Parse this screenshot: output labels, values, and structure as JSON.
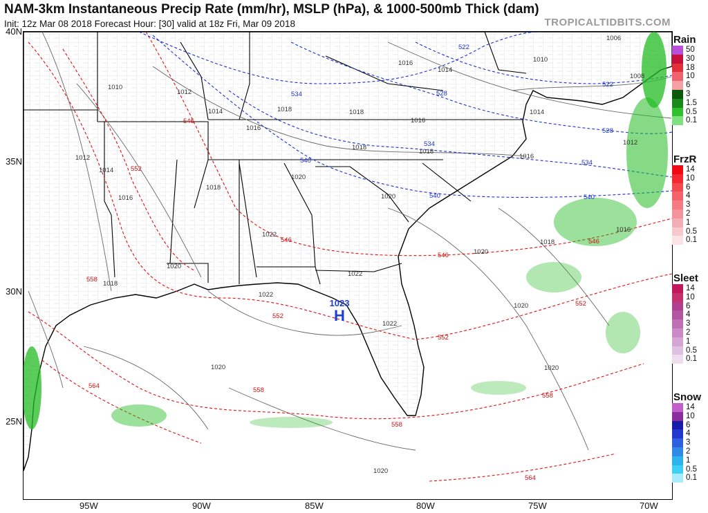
{
  "header": {
    "title": "NAM-3km Instantaneous Precip Rate (mm/hr), MSLP (hPa), & 1000-500mb Thick (dam)",
    "subtitle": "Init: 12z Mar 08 2018   Forecast Hour: [30]   valid at 18z Fri, Mar 09 2018",
    "brand": "TROPICALTIDBITS.COM"
  },
  "axes": {
    "lat_labels": [
      "40N",
      "35N",
      "30N",
      "25N"
    ],
    "lon_labels": [
      "95W",
      "90W",
      "85W",
      "80W",
      "75W",
      "70W"
    ]
  },
  "high_pressure": {
    "value": "1023",
    "letter": "H",
    "color": "#1f3fd0"
  },
  "isobar_labels": [
    "1006",
    "1008",
    "1010",
    "1010",
    "1012",
    "1012",
    "1012",
    "1014",
    "1014",
    "1014",
    "1014",
    "1016",
    "1016",
    "1016",
    "1016",
    "1016",
    "1016",
    "1018",
    "1018",
    "1018",
    "1018",
    "1018",
    "1018",
    "1018",
    "1020",
    "1020",
    "1020",
    "1020",
    "1020",
    "1020",
    "1020",
    "1020",
    "1022",
    "1022",
    "1022",
    "1022"
  ],
  "thickness_labels_blue": [
    "522",
    "522",
    "528",
    "528",
    "534",
    "534",
    "534",
    "540",
    "540",
    "540"
  ],
  "thickness_labels_red": [
    "546",
    "546",
    "546",
    "546",
    "552",
    "552",
    "552",
    "552",
    "558",
    "558",
    "558",
    "558",
    "564",
    "564"
  ],
  "colors": {
    "thickness_cold": "#1a2fd6",
    "thickness_warm": "#e01010",
    "isobar": "#555555",
    "rain": "#22bb22"
  },
  "legends": [
    {
      "name": "Rain",
      "labels": [
        "50",
        "30",
        "18",
        "10",
        "6",
        "3",
        "1.5",
        "0.5",
        "0.1"
      ],
      "colors": [
        "#b84fd9",
        "#c9103b",
        "#e0303a",
        "#f0636e",
        "#f4a0a5",
        "#0b5a0b",
        "#1a8a1a",
        "#2fbf2f",
        "#7fe07f"
      ]
    },
    {
      "name": "FrzR",
      "labels": [
        "14",
        "10",
        "6",
        "4",
        "3",
        "2",
        "1",
        "0.5",
        "0.1"
      ],
      "colors": [
        "#f00a14",
        "#f22a30",
        "#f34a4f",
        "#f5626a",
        "#f47c82",
        "#f3939b",
        "#f2aeb4",
        "#f6c9cd",
        "#fbe3e6"
      ]
    },
    {
      "name": "Sleet",
      "labels": [
        "14",
        "10",
        "6",
        "4",
        "3",
        "2",
        "1",
        "0.5",
        "0.1"
      ],
      "colors": [
        "#c2185b",
        "#c6306e",
        "#b03e8c",
        "#b455a0",
        "#bf6fb6",
        "#c98ac6",
        "#d5a5d3",
        "#e0c0e0",
        "#eedcef"
      ]
    },
    {
      "name": "Snow",
      "labels": [
        "14",
        "10",
        "6",
        "4",
        "3",
        "2",
        "1",
        "0.5",
        "0.1"
      ],
      "colors": [
        "#c060c8",
        "#8a2e9e",
        "#1a1aa8",
        "#2436d0",
        "#2d5fe0",
        "#2f8ae6",
        "#2cb4ee",
        "#3fd0f5",
        "#a8ecfb"
      ]
    }
  ]
}
